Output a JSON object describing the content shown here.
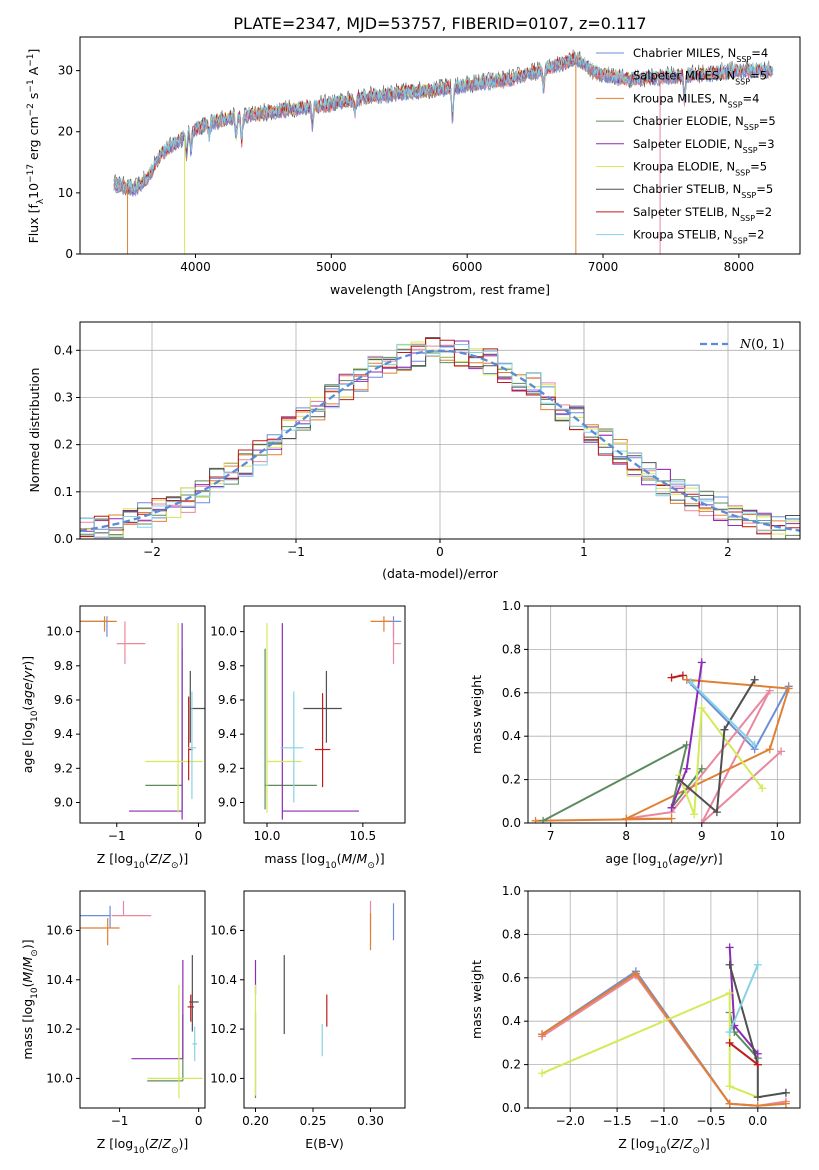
{
  "figure_title": "PLATE=2347, MJD=53757, FIBERID=0107, z=0.117",
  "colors": {
    "series": [
      "#6c8ed6",
      "#e9889e",
      "#e08033",
      "#5d8b5f",
      "#8c2bb5",
      "#d4ea59",
      "#505050",
      "#c01c1c",
      "#85d2e5"
    ],
    "normal_curve": "#5b8ad8",
    "grid": "#b0b0b0"
  },
  "chart_data": [
    {
      "id": "spectrum",
      "type": "line",
      "title": "PLATE=2347, MJD=53757, FIBERID=0107, z=0.117",
      "xlabel": "wavelength [Angstrom, rest frame]",
      "ylabel": "Flux [f_λ 10^-17 erg cm^-2 s^-1 A^-1]",
      "xlim": [
        3150,
        8450
      ],
      "ylim": [
        0,
        35.5
      ],
      "xticks": [
        4000,
        5000,
        6000,
        7000,
        8000
      ],
      "yticks": [
        0,
        10,
        20,
        30
      ],
      "legend_position": "top-right",
      "legend": [
        {
          "label": "Chabrier MILES, N",
          "sub": "SSP",
          "tail": "=4"
        },
        {
          "label": "Salpeter MILES, N",
          "sub": "SSP",
          "tail": "=5"
        },
        {
          "label": "Kroupa MILES, N",
          "sub": "SSP",
          "tail": "=4"
        },
        {
          "label": "Chabrier ELODIE, N",
          "sub": "SSP",
          "tail": "=5"
        },
        {
          "label": "Salpeter ELODIE, N",
          "sub": "SSP",
          "tail": "=3"
        },
        {
          "label": "Kroupa ELODIE, N",
          "sub": "SSP",
          "tail": "=5"
        },
        {
          "label": "Chabrier STELIB, N",
          "sub": "SSP",
          "tail": "=5"
        },
        {
          "label": "Salpeter STELIB, N",
          "sub": "SSP",
          "tail": "=2"
        },
        {
          "label": "Kroupa STELIB, N",
          "sub": "SSP",
          "tail": "=2"
        }
      ],
      "continuum": [
        [
          3400,
          11.5
        ],
        [
          3550,
          10.5
        ],
        [
          3650,
          12.5
        ],
        [
          3750,
          16.5
        ],
        [
          3850,
          18
        ],
        [
          4000,
          20.5
        ],
        [
          4200,
          22
        ],
        [
          4500,
          23
        ],
        [
          4800,
          24
        ],
        [
          5000,
          24.5
        ],
        [
          5300,
          25.8
        ],
        [
          5600,
          26.5
        ],
        [
          5900,
          27.2
        ],
        [
          6100,
          28
        ],
        [
          6300,
          28.5
        ],
        [
          6550,
          30
        ],
        [
          6800,
          32
        ],
        [
          6950,
          29.5
        ],
        [
          7200,
          28.5
        ],
        [
          7500,
          29
        ],
        [
          7800,
          29.5
        ],
        [
          8000,
          30
        ],
        [
          8250,
          30
        ]
      ],
      "features": [
        [
          3934,
          -3
        ],
        [
          3968,
          -3
        ],
        [
          4101,
          -2
        ],
        [
          4300,
          -3
        ],
        [
          4340,
          -4
        ],
        [
          4861,
          -3
        ],
        [
          5175,
          -2
        ],
        [
          5892,
          -5
        ],
        [
          6563,
          -3
        ],
        [
          7600,
          -4
        ]
      ]
    },
    {
      "id": "residual_histogram",
      "type": "histogram",
      "xlabel": "(data-model)/error",
      "ylabel": "Normed distribution",
      "xlim": [
        -2.5,
        2.5
      ],
      "ylim": [
        0,
        0.46
      ],
      "xticks": [
        -2,
        -1,
        0,
        1,
        2
      ],
      "yticks": [
        0.0,
        0.1,
        0.2,
        0.3,
        0.4
      ],
      "bin_width": 0.1,
      "legend": "N(0,1)",
      "legend_position": "top-right"
    },
    {
      "id": "age_vs_metallicity",
      "type": "scatter",
      "xlabel": "Z [log10(Z/Z☉)]",
      "ylabel": "age [log10(age/yr)]",
      "xlim": [
        -1.45,
        0.08
      ],
      "ylim": [
        8.88,
        10.15
      ],
      "xticks": [
        -1,
        0
      ],
      "yticks": [
        9.0,
        9.2,
        9.4,
        9.6,
        9.8,
        10.0
      ],
      "points": [
        {
          "x": -1.12,
          "y": 10.06,
          "xerr": [
            0.4,
            0.0
          ],
          "yerr": [
            0.09,
            0.03
          ],
          "series": 0
        },
        {
          "x": -0.9,
          "y": 9.93,
          "xerr": [
            0.1,
            0.25
          ],
          "yerr": [
            0.12,
            0.13
          ],
          "series": 1
        },
        {
          "x": -1.15,
          "y": 10.06,
          "xerr": [
            0.35,
            0.15
          ],
          "yerr": [
            0.06,
            0.03
          ],
          "series": 2
        },
        {
          "x": -0.2,
          "y": 9.1,
          "xerr": [
            0.45,
            0.0
          ],
          "yerr": [
            0.14,
            0.8
          ],
          "series": 3
        },
        {
          "x": -0.2,
          "y": 8.95,
          "xerr": [
            0.65,
            0.0
          ],
          "yerr": [
            0.05,
            1.1
          ],
          "series": 4
        },
        {
          "x": -0.25,
          "y": 9.24,
          "xerr": [
            0.4,
            0.3
          ],
          "yerr": [
            0.3,
            0.81
          ],
          "series": 5
        },
        {
          "x": -0.1,
          "y": 9.55,
          "xerr": [
            0.0,
            0.2
          ],
          "yerr": [
            0.2,
            0.22
          ],
          "series": 6
        },
        {
          "x": -0.12,
          "y": 9.31,
          "xerr": [
            0.0,
            0.05
          ],
          "yerr": [
            0.18,
            0.31
          ],
          "series": 7
        },
        {
          "x": -0.08,
          "y": 9.32,
          "xerr": [
            0.05,
            0.05
          ],
          "yerr": [
            0.3,
            0.33
          ],
          "series": 8
        }
      ]
    },
    {
      "id": "age_vs_mass",
      "type": "scatter",
      "xlabel": "mass [log10(M/M☉)]",
      "ylabel": "",
      "xlim": [
        9.88,
        10.72
      ],
      "ylim": [
        8.88,
        10.15
      ],
      "xticks": [
        10.0,
        10.5
      ],
      "yticks": [
        9.0,
        9.2,
        9.4,
        9.6,
        9.8,
        10.0
      ],
      "points": [
        {
          "x": 10.66,
          "y": 10.06,
          "xerr": [
            0.05,
            0.04
          ],
          "yerr": [
            0.09,
            0.03
          ],
          "series": 0
        },
        {
          "x": 10.66,
          "y": 9.93,
          "xerr": [
            0.0,
            0.04
          ],
          "yerr": [
            0.12,
            0.13
          ],
          "series": 1
        },
        {
          "x": 10.61,
          "y": 10.06,
          "xerr": [
            0.07,
            0.04
          ],
          "yerr": [
            0.06,
            0.03
          ],
          "series": 2
        },
        {
          "x": 9.99,
          "y": 9.1,
          "xerr": [
            0.0,
            0.27
          ],
          "yerr": [
            0.14,
            0.8
          ],
          "series": 3
        },
        {
          "x": 10.08,
          "y": 8.95,
          "xerr": [
            0.0,
            0.4
          ],
          "yerr": [
            0.05,
            1.1
          ],
          "series": 4
        },
        {
          "x": 10.0,
          "y": 9.24,
          "xerr": [
            0.0,
            0.18
          ],
          "yerr": [
            0.3,
            0.81
          ],
          "series": 5
        },
        {
          "x": 10.31,
          "y": 9.55,
          "xerr": [
            0.12,
            0.08
          ],
          "yerr": [
            0.2,
            0.22
          ],
          "series": 6
        },
        {
          "x": 10.29,
          "y": 9.31,
          "xerr": [
            0.04,
            0.04
          ],
          "yerr": [
            0.22,
            0.33
          ],
          "series": 7
        },
        {
          "x": 10.14,
          "y": 9.32,
          "xerr": [
            0.07,
            0.05
          ],
          "yerr": [
            0.32,
            0.33
          ],
          "series": 8
        }
      ]
    },
    {
      "id": "mass_weight_vs_age",
      "type": "line",
      "xlabel": "age [log10(age/yr)]",
      "ylabel": "mass weight",
      "xlim": [
        6.7,
        10.3
      ],
      "ylim": [
        0,
        1
      ],
      "xticks": [
        7,
        8,
        9,
        10
      ],
      "yticks": [
        0.0,
        0.2,
        0.4,
        0.6,
        0.8,
        1.0
      ],
      "series": [
        {
          "series": 0,
          "x": [
            8.8,
            9.7,
            10.15
          ],
          "y": [
            0.66,
            0.34,
            0.63
          ]
        },
        {
          "series": 1,
          "x": [
            8.0,
            8.6,
            9.9,
            9.0,
            10.05
          ],
          "y": [
            0.02,
            0.05,
            0.61,
            0.0,
            0.33
          ]
        },
        {
          "series": 2,
          "x": [
            6.8,
            8.6,
            8.0,
            9.9,
            10.15,
            8.8
          ],
          "y": [
            0.01,
            0.02,
            0.02,
            0.34,
            0.62,
            0.66
          ]
        },
        {
          "series": 3,
          "x": [
            6.9,
            8.8,
            8.6,
            9.0
          ],
          "y": [
            0.01,
            0.36,
            0.07,
            0.25
          ]
        },
        {
          "series": 4,
          "x": [
            8.6,
            8.8,
            9.0
          ],
          "y": [
            0.07,
            0.25,
            0.74
          ]
        },
        {
          "series": 5,
          "x": [
            8.7,
            8.9,
            9.0,
            9.8
          ],
          "y": [
            0.22,
            0.04,
            0.53,
            0.16
          ]
        },
        {
          "series": 6,
          "x": [
            8.7,
            9.2,
            9.3,
            9.7
          ],
          "y": [
            0.2,
            0.05,
            0.43,
            0.66
          ]
        },
        {
          "series": 7,
          "x": [
            8.6,
            8.75
          ],
          "y": [
            0.67,
            0.68
          ]
        },
        {
          "series": 8,
          "x": [
            8.85,
            9.7
          ],
          "y": [
            0.65,
            0.36
          ]
        }
      ]
    },
    {
      "id": "mass_vs_metallicity",
      "type": "scatter",
      "xlabel": "Z [log10(Z/Z☉)]",
      "ylabel": "mass [log10(M/M☉)]",
      "xlim": [
        -1.5,
        0.08
      ],
      "ylim": [
        9.88,
        10.76
      ],
      "xticks": [
        -1,
        0
      ],
      "yticks": [
        10.0,
        10.2,
        10.4,
        10.6
      ],
      "points": [
        {
          "x": -1.12,
          "y": 10.66,
          "xerr": [
            0.4,
            0.0
          ],
          "yerr": [
            0.05,
            0.04
          ],
          "series": 0
        },
        {
          "x": -0.95,
          "y": 10.66,
          "xerr": [
            0.15,
            0.35
          ],
          "yerr": [
            0.0,
            0.06
          ],
          "series": 1
        },
        {
          "x": -1.15,
          "y": 10.61,
          "xerr": [
            0.35,
            0.15
          ],
          "yerr": [
            0.07,
            0.04
          ],
          "series": 2
        },
        {
          "x": -0.2,
          "y": 9.99,
          "xerr": [
            0.45,
            0.0
          ],
          "yerr": [
            0.0,
            0.27
          ],
          "series": 3
        },
        {
          "x": -0.2,
          "y": 10.08,
          "xerr": [
            0.65,
            0.0
          ],
          "yerr": [
            0.0,
            0.4
          ],
          "series": 4
        },
        {
          "x": -0.25,
          "y": 10.0,
          "xerr": [
            0.4,
            0.3
          ],
          "yerr": [
            0.08,
            0.38
          ],
          "series": 5
        },
        {
          "x": -0.08,
          "y": 10.31,
          "xerr": [
            0.04,
            0.08
          ],
          "yerr": [
            0.12,
            0.19
          ],
          "series": 6
        },
        {
          "x": -0.1,
          "y": 10.29,
          "xerr": [
            0.04,
            0.04
          ],
          "yerr": [
            0.06,
            0.05
          ],
          "series": 7
        },
        {
          "x": -0.05,
          "y": 10.14,
          "xerr": [
            0.03,
            0.03
          ],
          "yerr": [
            0.07,
            0.07
          ],
          "series": 8
        }
      ]
    },
    {
      "id": "mass_vs_extinction",
      "type": "scatter",
      "xlabel": "E(B-V)",
      "ylabel": "",
      "xlim": [
        0.19,
        0.33
      ],
      "ylim": [
        9.88,
        10.76
      ],
      "xticks": [
        0.2,
        0.25,
        0.3
      ],
      "yticks": [
        10.0,
        10.2,
        10.4,
        10.6
      ],
      "points": [
        {
          "x": 0.32,
          "y": 10.64,
          "yerr": [
            0.08,
            0.07
          ],
          "series": 0
        },
        {
          "x": 0.3,
          "y": 10.66,
          "yerr": [
            0.06,
            0.06
          ],
          "series": 1
        },
        {
          "x": 0.3,
          "y": 10.6,
          "yerr": [
            0.08,
            0.07
          ],
          "series": 2
        },
        {
          "x": 0.2,
          "y": 10.02,
          "yerr": [
            0.1,
            0.25
          ],
          "series": 3
        },
        {
          "x": 0.2,
          "y": 10.4,
          "yerr": [
            0.06,
            0.08
          ],
          "series": 4
        },
        {
          "x": 0.2,
          "y": 10.15,
          "yerr": [
            0.22,
            0.23
          ],
          "series": 5
        },
        {
          "x": 0.225,
          "y": 10.34,
          "yerr": [
            0.16,
            0.16
          ],
          "series": 6
        },
        {
          "x": 0.262,
          "y": 10.27,
          "yerr": [
            0.06,
            0.07
          ],
          "series": 7
        },
        {
          "x": 0.258,
          "y": 10.15,
          "yerr": [
            0.06,
            0.07
          ],
          "series": 8
        }
      ]
    },
    {
      "id": "mass_weight_vs_metallicity",
      "type": "line",
      "xlabel": "Z [log10(Z/Z☉)]",
      "ylabel": "mass weight",
      "xlim": [
        -2.45,
        0.45
      ],
      "ylim": [
        0,
        1
      ],
      "xticks": [
        -2.0,
        -1.5,
        -1.0,
        -0.5,
        0.0
      ],
      "yticks": [
        0.0,
        0.2,
        0.4,
        0.6,
        0.8,
        1.0
      ],
      "series": [
        {
          "series": 0,
          "x": [
            -2.3,
            -1.3,
            -0.3,
            0.0
          ],
          "y": [
            0.34,
            0.63,
            0.02,
            0.01
          ]
        },
        {
          "series": 1,
          "x": [
            -2.3,
            -1.3,
            -0.3,
            0.0,
            0.3
          ],
          "y": [
            0.33,
            0.61,
            0.02,
            0.01,
            0.03
          ]
        },
        {
          "series": 2,
          "x": [
            -2.3,
            -1.3,
            -0.3,
            0.0,
            0.3
          ],
          "y": [
            0.34,
            0.62,
            0.02,
            0.01,
            0.02
          ]
        },
        {
          "series": 3,
          "x": [
            -0.3,
            -0.25,
            0.0
          ],
          "y": [
            0.44,
            0.35,
            0.23
          ]
        },
        {
          "series": 4,
          "x": [
            -0.3,
            -0.25,
            0.0
          ],
          "y": [
            0.74,
            0.38,
            0.25
          ]
        },
        {
          "series": 5,
          "x": [
            -2.3,
            -0.3,
            -0.3,
            0.0
          ],
          "y": [
            0.16,
            0.53,
            0.1,
            0.05
          ]
        },
        {
          "series": 6,
          "x": [
            -0.3,
            0.0,
            0.0,
            0.3
          ],
          "y": [
            0.66,
            0.2,
            0.05,
            0.07
          ]
        },
        {
          "series": 7,
          "x": [
            -0.3,
            0.0
          ],
          "y": [
            0.3,
            0.2
          ]
        },
        {
          "series": 8,
          "x": [
            -0.3,
            0.0
          ],
          "y": [
            0.35,
            0.66
          ]
        }
      ]
    }
  ]
}
